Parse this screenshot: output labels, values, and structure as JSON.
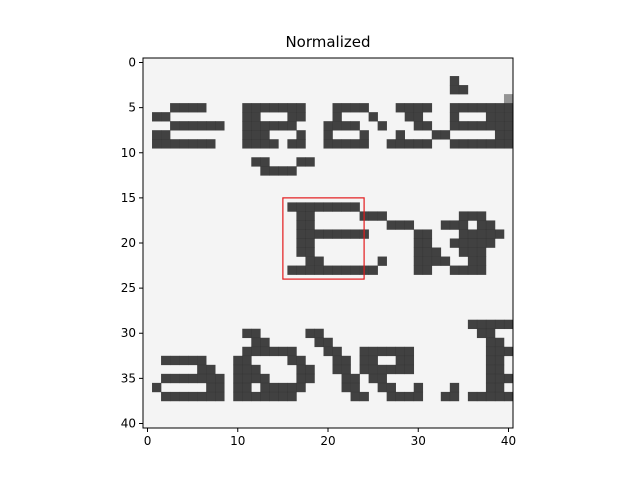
{
  "chart_data": {
    "type": "heatmap",
    "title": "Normalized",
    "xlabel": "",
    "ylabel": "",
    "colormap": "gray",
    "grid": false,
    "xlim": [
      -0.5,
      40.5
    ],
    "ylim": [
      40.5,
      -0.5
    ],
    "xticks": [
      0,
      10,
      20,
      30,
      40
    ],
    "yticks": [
      0,
      5,
      10,
      15,
      20,
      25,
      30,
      35,
      40
    ],
    "image_text_lines": [
      "against",
      "Eve",
      "able. E"
    ],
    "box": {
      "x0": 15,
      "y0": 15,
      "x1": 24,
      "y1": 24,
      "color": "#e31a1c"
    },
    "image_grid": [
      "lllllllllllllllllllllllllllllllllllllllll",
      "lllllllllllllllllllllllllllllllllllllllll",
      "lllllllllllllllllllllllllllllllllldllllll",
      "llllllllllllllllllllllllllllllllllddlllll",
      "llllllllllllllllllllllllllllllllllllllllm",
      "lllddddlllldddddddlllddddlllddddllddddddd",
      "lddllllllllddlllddllldllldlllddllldlllddd",
      "lllddddddllddddddlllddddlldlllddllddddddd",
      "lddlllllllldddllldlldllldllldlllddllllldd",
      "ldddddddlllddddlddlldddddlldddddllddddddd",
      "lllllllllllllllllllllllllllllllllllllllll",
      "llllllllllllddlllddlllllllllllllllllllllll",
      "lllllllllllllddddlllllllllllllllllllllllll",
      "lllllllllllllllllllllllllllllllllllllllll",
      "lllllllllllllllllllllllllllllllllllllllll",
      "lllllllllllllllllllllllllllllllllllllllll",
      "llllllllllllllllddddddddlllllllllllllllll",
      "lllllllllllllllllddllllldddlllllllldddlll",
      "lllllllllllllllllddlllllllldddllldddlddll",
      "lllllllllllllllllddddddddlllllddllldddddl",
      "lllllllllllllllllddlllllllllllddlldddddll",
      "lllllllllllllllllddllllllllllldddlldddlll",
      "llllllllllllllllllddlllllldlllddddllddlll",
      "llllllllllllllllddddddddddllllddllddddlll",
      "lllllllllllllllllllllllllllllllllllllllll",
      "lllllllllllllllllllllllllllllllllllllllll",
      "lllllllllllllllllllllllllllllllllllllllll",
      "lllllllllllllllllllllllllllllllllllllllll",
      "lllllllllllllllllllllllllllllllllllllllll",
      "llllllllllllllllllllllllllllllllllllddddd",
      "lllllllllllddlllllddlllllllllllllllllddlll",
      "llllllllllllddlllllddlllllllllllllllllddll",
      "lllllllllllddddddlllddllddddddlllllllldddd",
      "lldddddlllddllllddlllddlddllddllllllllddll",
      "llllllddlldddllllddllddlddddddllllllllddll",
      "lldddddddlddddlllddlllddlddllllllllllldddd",
      "ldlllllddlddldddddllllddllddlldllldlllddll",
      "lldddddddldddddddllllllddllddddllddlddddddd",
      "lllllllllllllllllllllllllllllllllllllllll",
      "lllllllllllllllllllllllllllllllllllllllll",
      "lllllllllllllllllllllllllllllllllllllllll"
    ]
  }
}
